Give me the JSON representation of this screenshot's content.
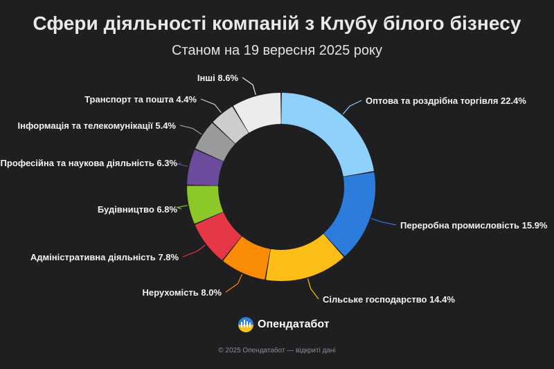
{
  "title": "Сфери діяльності компаній з Клубу білого бізнесу",
  "subtitle": "Станом на 19 вересня 2025 року",
  "brand": {
    "name": "Опендатабот",
    "logo_icon": "opendatabot-logo-icon"
  },
  "footer": "© 2025 Опендатабот — відкриті дані",
  "chart_data": {
    "type": "pie",
    "variant": "donut",
    "slices": [
      {
        "label": "Оптова та роздрібна торгівля 22.4%",
        "value": 22.4,
        "color": "#8fd1fb"
      },
      {
        "label": "Переробна промисловість 15.9%",
        "value": 15.9,
        "color": "#2c7ddb"
      },
      {
        "label": "Сільське господарство 14.4%",
        "value": 14.4,
        "color": "#fdbd17"
      },
      {
        "label": "Нерухомість 8.0%",
        "value": 8.0,
        "color": "#f98b05"
      },
      {
        "label": "Адміністративна діяльність 7.8%",
        "value": 7.8,
        "color": "#e63747"
      },
      {
        "label": "Будівництво 6.8%",
        "value": 6.8,
        "color": "#8bc828"
      },
      {
        "label": "Професійна та наукова діяльність 6.3%",
        "value": 6.3,
        "color": "#6c4a9c"
      },
      {
        "label": "Інформація та телекомунікації 5.4%",
        "value": 5.4,
        "color": "#9a9a9c"
      },
      {
        "label": "Транспорт та пошта 4.4%",
        "value": 4.4,
        "color": "#cdcdcf"
      },
      {
        "label": "Інші 8.6%",
        "value": 8.6,
        "color": "#ececec"
      }
    ]
  }
}
